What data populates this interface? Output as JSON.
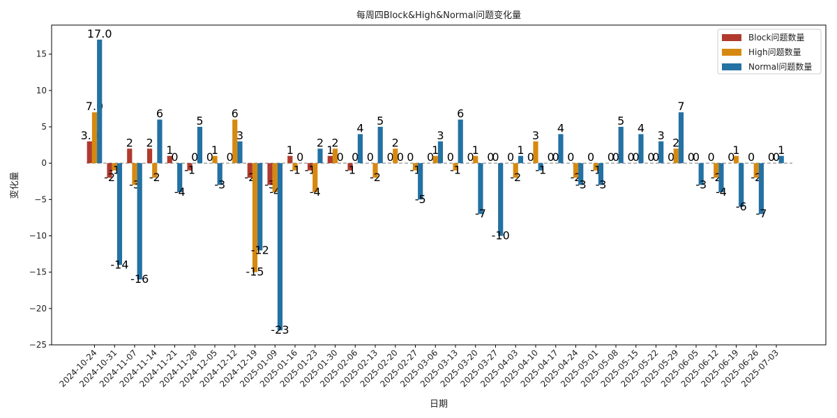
{
  "chart_data": {
    "type": "bar",
    "title": "每周四Block&High&Normal问题变化量",
    "xlabel": "日期",
    "ylabel": "变化量",
    "ylim": [
      -25,
      19
    ],
    "yticks": [
      -25,
      -20,
      -15,
      -10,
      -5,
      0,
      5,
      10,
      15
    ],
    "grid": false,
    "legend_position": "top-right",
    "categories": [
      "2024-10-24",
      "2024-10-31",
      "2024-11-07",
      "2024-11-14",
      "2024-11-21",
      "2024-11-28",
      "2024-12-05",
      "2024-12-12",
      "2024-12-19",
      "2025-01-09",
      "2025-01-16",
      "2025-01-23",
      "2025-01-30",
      "2025-02-06",
      "2025-02-13",
      "2025-02-20",
      "2025-02-27",
      "2025-03-06",
      "2025-03-13",
      "2025-03-20",
      "2025-03-27",
      "2025-04-03",
      "2025-04-10",
      "2025-04-17",
      "2025-04-24",
      "2025-05-01",
      "2025-05-08",
      "2025-05-15",
      "2025-05-22",
      "2025-05-29",
      "2025-06-05",
      "2025-06-12",
      "2025-06-19",
      "2025-06-26",
      "2025-07-03"
    ],
    "series": [
      {
        "name": "Block问题数量",
        "color": "#b03a2e",
        "values": [
          3,
          -2,
          2,
          2,
          1,
          -1,
          0,
          0,
          -2,
          -3,
          1,
          -1,
          1,
          -1,
          0,
          0,
          0,
          0,
          0,
          0,
          0,
          0,
          0,
          0,
          0,
          0,
          0,
          0,
          0,
          0,
          0,
          0,
          0,
          0,
          0
        ],
        "labels": [
          "3.0",
          "-2",
          "2",
          "2",
          "1",
          "-1",
          "0",
          "0",
          "-2",
          "-3",
          "1",
          "-1",
          "1",
          "-1",
          "0",
          "0",
          "0",
          "0",
          "0",
          "0",
          "0",
          "0",
          "0",
          "0",
          "0",
          "0",
          "0",
          "0",
          "0",
          "0",
          "0",
          "0",
          "0",
          "0",
          "0"
        ]
      },
      {
        "name": "High问题数量",
        "color": "#d68910",
        "values": [
          7,
          -1,
          -3,
          -2,
          0,
          0,
          1,
          6,
          -15,
          -4,
          -1,
          -4,
          2,
          0,
          -2,
          2,
          -1,
          1,
          -1,
          1,
          0,
          -2,
          3,
          0,
          -2,
          -1,
          0,
          0,
          0,
          2,
          0,
          -2,
          1,
          -2,
          0
        ],
        "labels": [
          "7.0",
          "-1",
          "-3",
          "-2",
          "0",
          "0",
          "1",
          "6",
          "-15",
          "-4",
          "-1",
          "-4",
          "2",
          "0",
          "-2",
          "2",
          "-1",
          "1",
          "-1",
          "1",
          "0",
          "-2",
          "3",
          "0",
          "-2",
          "-1",
          "0",
          "0",
          "0",
          "2",
          "0",
          "-2",
          "1",
          "-2",
          "0"
        ]
      },
      {
        "name": "Normal问题数量",
        "color": "#2471a3",
        "values": [
          17,
          -14,
          -16,
          6,
          -4,
          5,
          -3,
          3,
          -12,
          -23,
          0,
          2,
          0,
          4,
          5,
          0,
          -5,
          3,
          6,
          -7,
          -10,
          1,
          -1,
          4,
          -3,
          -3,
          5,
          4,
          3,
          7,
          -3,
          -4,
          -6,
          -7,
          1
        ],
        "labels": [
          "17.0",
          "-14",
          "-16",
          "6",
          "-4",
          "5",
          "-3",
          "3",
          "-12",
          "-23",
          "0",
          "2",
          "0",
          "4",
          "5",
          "0",
          "-5",
          "3",
          "6",
          "-7",
          "-10",
          "1",
          "-1",
          "4",
          "-3",
          "-3",
          "5",
          "4",
          "3",
          "7",
          "-3",
          "-4",
          "-6",
          "-7",
          "1"
        ]
      }
    ]
  }
}
